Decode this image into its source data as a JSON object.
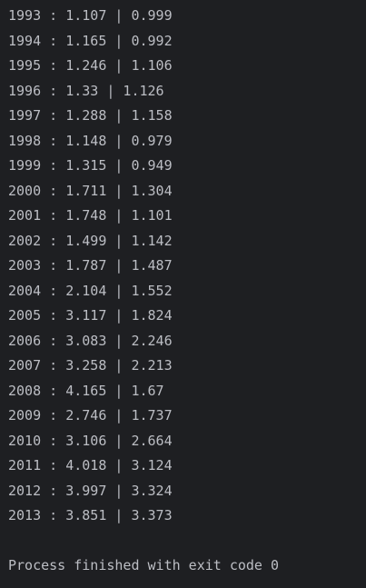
{
  "console": {
    "lines": [
      "1993 : 1.107 | 0.999",
      "1994 : 1.165 | 0.992",
      "1995 : 1.246 | 1.106",
      "1996 : 1.33 | 1.126",
      "1997 : 1.288 | 1.158",
      "1998 : 1.148 | 0.979",
      "1999 : 1.315 | 0.949",
      "2000 : 1.711 | 1.304",
      "2001 : 1.748 | 1.101",
      "2002 : 1.499 | 1.142",
      "2003 : 1.787 | 1.487",
      "2004 : 2.104 | 1.552",
      "2005 : 3.117 | 1.824",
      "2006 : 3.083 | 2.246",
      "2007 : 3.258 | 2.213",
      "2008 : 4.165 | 1.67",
      "2009 : 2.746 | 1.737",
      "2010 : 3.106 | 2.664",
      "2011 : 4.018 | 3.124",
      "2012 : 3.997 | 3.324",
      "2013 : 3.851 | 3.373"
    ],
    "exit_message": "Process finished with exit code 0"
  },
  "colors": {
    "background": "#1e1f22",
    "text": "#bcbec4"
  }
}
